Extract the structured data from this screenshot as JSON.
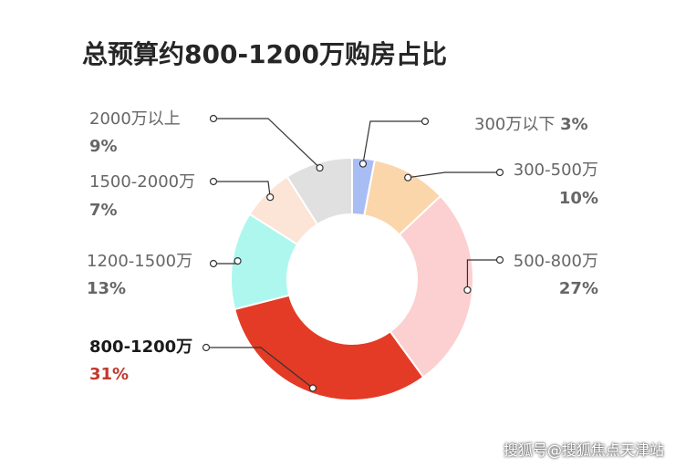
{
  "chart_data": {
    "type": "pie",
    "donut": true,
    "title": "总预算约800-1200万购房占比",
    "categories": [
      "300万以下",
      "300-500万",
      "500-800万",
      "800-1200万",
      "1200-1500万",
      "1500-2000万",
      "2000万以上"
    ],
    "values": [
      3,
      10,
      27,
      31,
      13,
      7,
      9
    ],
    "value_labels": [
      "3%",
      "10%",
      "27%",
      "31%",
      "13%",
      "7%",
      "9%"
    ],
    "colors": [
      "#a9bdf5",
      "#fad6aa",
      "#fcd0d0",
      "#e33b26",
      "#aef7ef",
      "#fce4d6",
      "#e0e0e0"
    ],
    "highlight": "800-1200万",
    "highlight_value_color": "#c0392b",
    "legend": "none (leader-line labels)"
  },
  "watermark": "搜狐号@搜狐焦点天津站"
}
